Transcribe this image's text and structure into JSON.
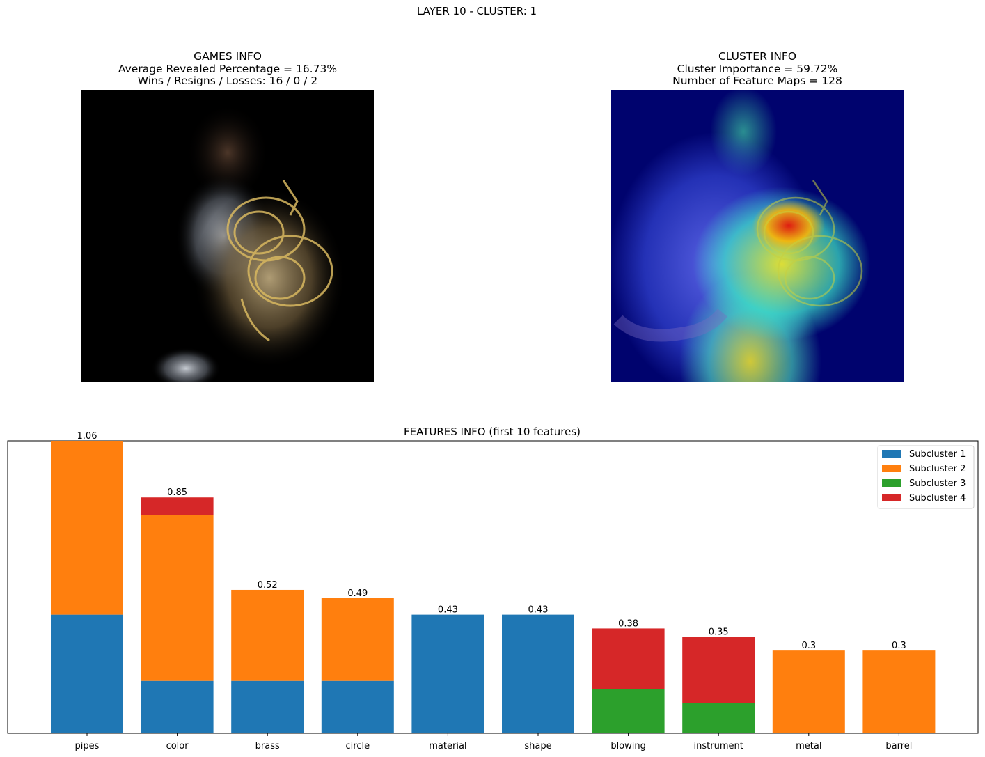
{
  "suptitle": "LAYER 10 - CLUSTER: 1",
  "games_info": {
    "line1": "GAMES INFO",
    "line2": "Average Revealed Percentage = 16.73%",
    "line3": "Wins / Resigns / Losses: 16 / 0 / 2"
  },
  "cluster_info": {
    "line1": "CLUSTER INFO",
    "line2": "Cluster Importance = 59.72%",
    "line3": "Number of Feature Maps = 128"
  },
  "colors": {
    "subcluster1": "#1f77b4",
    "subcluster2": "#ff7f0e",
    "subcluster3": "#2ca02c",
    "subcluster4": "#d62728"
  },
  "chart_data": {
    "type": "bar",
    "stacked": true,
    "title": "FEATURES INFO (first 10 features)",
    "categories": [
      "pipes",
      "color",
      "brass",
      "circle",
      "material",
      "shape",
      "blowing",
      "instrument",
      "metal",
      "barrel"
    ],
    "totals": [
      "1.06",
      "0.85",
      "0.52",
      "0.49",
      "0.43",
      "0.43",
      "0.38",
      "0.35",
      "0.3",
      "0.3"
    ],
    "series": [
      {
        "name": "Subcluster 1",
        "color": "#1f77b4",
        "values": [
          0.43,
          0.19,
          0.19,
          0.19,
          0.43,
          0.43,
          0,
          0,
          0,
          0
        ]
      },
      {
        "name": "Subcluster 2",
        "color": "#ff7f0e",
        "values": [
          0.63,
          0.6,
          0.33,
          0.3,
          0,
          0,
          0,
          0,
          0.3,
          0.3
        ]
      },
      {
        "name": "Subcluster 3",
        "color": "#2ca02c",
        "values": [
          0,
          0,
          0,
          0,
          0,
          0,
          0.16,
          0.11,
          0,
          0
        ]
      },
      {
        "name": "Subcluster 4",
        "color": "#d62728",
        "values": [
          0,
          0.065,
          0,
          0,
          0,
          0,
          0.22,
          0.24,
          0,
          0
        ]
      }
    ],
    "ylim": [
      0,
      1.06
    ],
    "yticks_visible": false,
    "legend_position": "top-right",
    "grid": false
  }
}
